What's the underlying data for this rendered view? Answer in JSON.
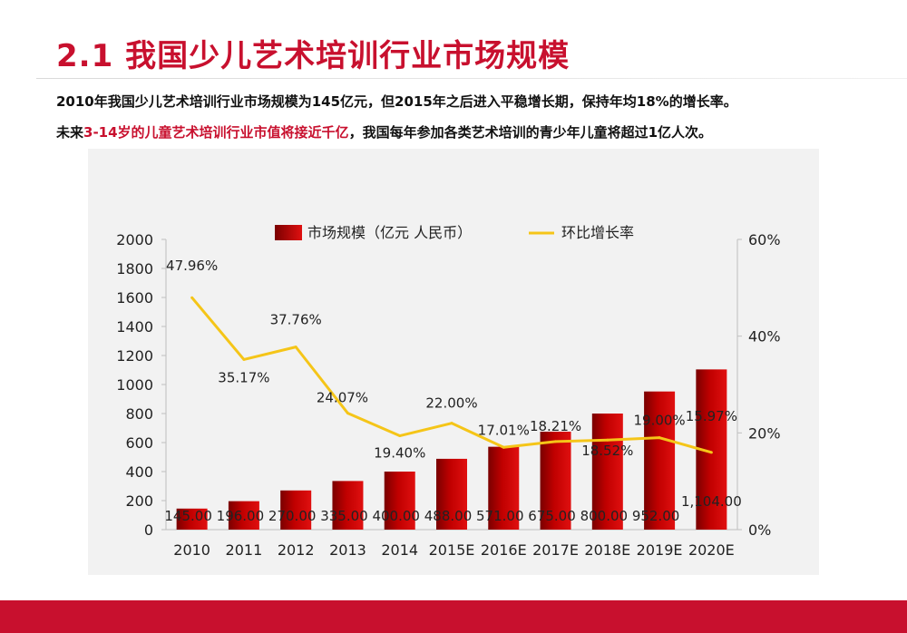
{
  "slide": {
    "title": "2.1 我国少儿艺术培训行业市场规模",
    "line1": "2010年我国少儿艺术培训行业市场规模为145亿元，但2015年之后进入平稳增长期，保持年均18%的增长率。",
    "line2_prefix": "未来",
    "line2_highlight": "3-14岁的儿童艺术培训行业市值将接近千亿",
    "line2_suffix": "，我国每年参加各类艺术培训的青少年儿童将超过1亿人次。"
  },
  "colors": {
    "accent": "#c8102e",
    "bar": "#c00000",
    "line": "#f5c518"
  },
  "chart_data": {
    "type": "bar",
    "categories": [
      "2010",
      "2011",
      "2012",
      "2013",
      "2014",
      "2015E",
      "2016E",
      "2017E",
      "2018E",
      "2019E",
      "2020E"
    ],
    "series": [
      {
        "name": "市场规模（亿元 人民币）",
        "type": "bar",
        "axis": "left",
        "values": [
          145.0,
          196.0,
          270.0,
          335.0,
          400.0,
          488.0,
          571.0,
          675.0,
          800.0,
          952.0,
          1104.0
        ],
        "labels": [
          "145.00",
          "196.00",
          "270.00",
          "335.00",
          "400.00",
          "488.00",
          "571.00",
          "675.00",
          "800.00",
          "952.00",
          "1,104.00"
        ]
      },
      {
        "name": "环比增长率",
        "type": "line",
        "axis": "right",
        "values": [
          47.96,
          35.17,
          37.76,
          24.07,
          19.4,
          22.0,
          17.01,
          18.21,
          18.52,
          19.0,
          15.97
        ],
        "labels": [
          "47.96%",
          "35.17%",
          "37.76%",
          "24.07%",
          "19.40%",
          "22.00%",
          "17.01%",
          "18.21%",
          "18.52%",
          "19.00%",
          "15.97%"
        ]
      }
    ],
    "y_left": {
      "min": 0,
      "max": 2000,
      "ticks": [
        "0",
        "200",
        "400",
        "600",
        "800",
        "1000",
        "1200",
        "1400",
        "1600",
        "1800",
        "2000"
      ]
    },
    "y_right": {
      "min": 0,
      "max": 60,
      "ticks": [
        "0%",
        "20%",
        "40%",
        "60%"
      ]
    },
    "grid": false,
    "legend_position": "top"
  }
}
